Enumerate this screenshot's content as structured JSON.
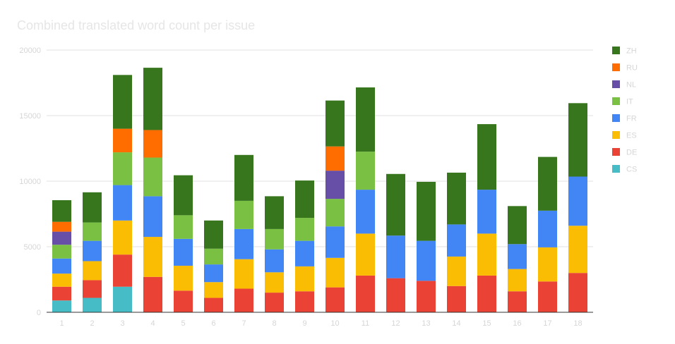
{
  "chart_data": {
    "type": "bar",
    "stacked": true,
    "title": "Combined translated word count per issue",
    "categories": [
      "1",
      "2",
      "3",
      "4",
      "5",
      "6",
      "7",
      "8",
      "9",
      "10",
      "11",
      "12",
      "13",
      "14",
      "15",
      "16",
      "17",
      "18"
    ],
    "ylim": [
      0,
      20000
    ],
    "yticks": [
      0,
      5000,
      10000,
      15000,
      20000
    ],
    "grid": true,
    "legend_position": "right",
    "series": [
      {
        "name": "CS",
        "color": "#46bdc6",
        "values": [
          900,
          1100,
          1950,
          0,
          0,
          0,
          0,
          0,
          0,
          0,
          0,
          0,
          0,
          0,
          0,
          0,
          0,
          0
        ]
      },
      {
        "name": "DE",
        "color": "#ea4335",
        "values": [
          1050,
          1350,
          2450,
          2700,
          1650,
          1100,
          1800,
          1500,
          1600,
          1900,
          2800,
          2600,
          2400,
          2000,
          2800,
          1600,
          2350,
          3000
        ]
      },
      {
        "name": "ES",
        "color": "#fbbc04",
        "values": [
          1000,
          1450,
          2600,
          3050,
          1900,
          1200,
          2250,
          1550,
          1900,
          2250,
          3200,
          0,
          0,
          2250,
          3200,
          1700,
          2600,
          3600
        ]
      },
      {
        "name": "FR",
        "color": "#4285f4",
        "values": [
          1150,
          1550,
          2700,
          3100,
          2050,
          1350,
          2300,
          1750,
          1950,
          2400,
          3350,
          3250,
          3050,
          2450,
          3350,
          1900,
          2800,
          3750
        ]
      },
      {
        "name": "IT",
        "color": "#7ac143",
        "values": [
          1050,
          1400,
          2500,
          2950,
          1800,
          1200,
          2150,
          1550,
          1750,
          2100,
          2900,
          0,
          0,
          0,
          0,
          0,
          0,
          0
        ]
      },
      {
        "name": "NL",
        "color": "#674ea7",
        "values": [
          1000,
          0,
          0,
          0,
          0,
          0,
          0,
          0,
          0,
          2150,
          0,
          0,
          0,
          0,
          0,
          0,
          0,
          0
        ]
      },
      {
        "name": "RU",
        "color": "#ff6d01",
        "values": [
          750,
          0,
          1800,
          2100,
          0,
          0,
          0,
          0,
          0,
          1850,
          0,
          0,
          0,
          0,
          0,
          0,
          0,
          0
        ]
      },
      {
        "name": "ZH",
        "color": "#38761d",
        "values": [
          1650,
          2300,
          4100,
          4750,
          3050,
          2150,
          3500,
          2500,
          2850,
          3500,
          4900,
          4700,
          4500,
          3950,
          5000,
          2900,
          4100,
          5600
        ]
      }
    ]
  }
}
